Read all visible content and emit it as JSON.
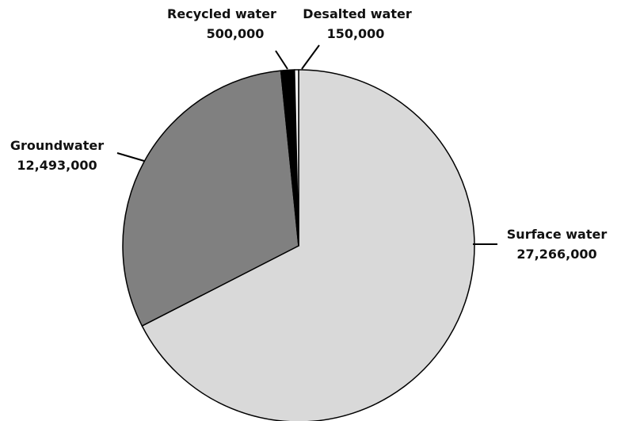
{
  "chart_data": {
    "type": "pie",
    "title": "",
    "start": "top",
    "direction": "clockwise",
    "colors": {
      "surface": "#d9d9d9",
      "groundwater": "#808080",
      "recycled": "#000000",
      "desalted": "#ffffff",
      "stroke": "#000000"
    },
    "slices": [
      {
        "label": "Surface water",
        "value_text": "27,266,000",
        "value": 27266000,
        "color": "#d9d9d9"
      },
      {
        "label": "Groundwater",
        "value_text": "12,493,000",
        "value": 12493000,
        "color": "#808080"
      },
      {
        "label": "Recycled water",
        "value_text": "500,000",
        "value": 500000,
        "color": "#000000"
      },
      {
        "label": "Desalted water",
        "value_text": "150,000",
        "value": 150000,
        "color": "#ffffff"
      }
    ]
  }
}
